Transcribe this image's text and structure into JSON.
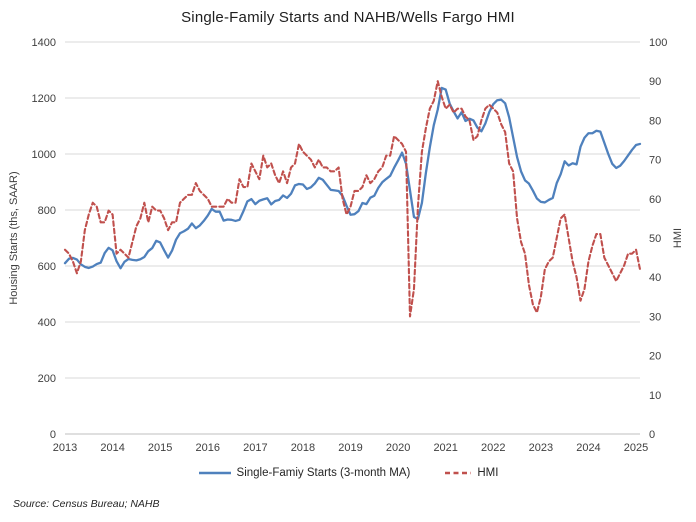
{
  "source_note": "Source: Census Bureau; NAHB",
  "chart_data": {
    "type": "line",
    "title": "Single-Family Starts and NAHB/Wells Fargo HMI",
    "ylabel_left": "Housing Starts (ths, SAAR)",
    "ylabel_right": "HMI",
    "frequency": "monthly",
    "x_start": "2013-01",
    "x_end": "2025-02",
    "grid": "horizontal-only",
    "legend_position": "bottom",
    "x_tick_labels": [
      "2013",
      "2014",
      "2015",
      "2016",
      "2017",
      "2018",
      "2019",
      "2020",
      "2021",
      "2022",
      "2023",
      "2024",
      "2025"
    ],
    "y_left_axis": {
      "min": 0,
      "max": 1400,
      "step": 200,
      "ticks": [
        "0",
        "200",
        "400",
        "600",
        "800",
        "1000",
        "1200",
        "1400"
      ]
    },
    "y_right_axis": {
      "min": 0,
      "max": 100,
      "step": 10,
      "ticks": [
        "0",
        "10",
        "20",
        "30",
        "40",
        "50",
        "60",
        "70",
        "80",
        "90",
        "100"
      ]
    },
    "series": [
      {
        "name": "Single-Famiy Starts (3-month MA)",
        "axis": "left",
        "color": "#4F81BD",
        "style": "solid",
        "values": [
          610,
          626,
          629,
          623,
          606,
          597,
          593,
          598,
          607,
          612,
          646,
          665,
          656,
          617,
          592,
          615,
          625,
          622,
          620,
          624,
          632,
          653,
          664,
          690,
          684,
          656,
          630,
          655,
          694,
          717,
          724,
          733,
          752,
          735,
          745,
          761,
          780,
          804,
          794,
          794,
          762,
          766,
          765,
          761,
          765,
          796,
          831,
          839,
          821,
          833,
          838,
          842,
          820,
          832,
          836,
          852,
          843,
          858,
          888,
          893,
          891,
          875,
          881,
          895,
          915,
          908,
          890,
          872,
          870,
          868,
          850,
          815,
          783,
          785,
          796,
          825,
          821,
          844,
          851,
          879,
          899,
          911,
          922,
          951,
          977,
          1005,
          965,
          870,
          775,
          768,
          825,
          932,
          1024,
          1103,
          1159,
          1236,
          1230,
          1180,
          1152,
          1127,
          1149,
          1118,
          1126,
          1120,
          1094,
          1081,
          1109,
          1150,
          1178,
          1192,
          1194,
          1181,
          1131,
          1060,
          989,
          938,
          906,
          894,
          869,
          841,
          829,
          827,
          836,
          843,
          896,
          928,
          974,
          959,
          967,
          963,
          1026,
          1058,
          1074,
          1074,
          1083,
          1080,
          1040,
          1000,
          965,
          950,
          958,
          975,
          995,
          1015,
          1032,
          1036
        ]
      },
      {
        "name": "HMI",
        "axis": "right",
        "color": "#C0504D",
        "style": "dashed",
        "values": [
          47,
          46,
          44,
          41,
          44,
          52,
          56,
          59,
          58,
          54,
          54,
          57,
          56,
          46,
          47,
          46,
          45,
          49,
          53,
          55,
          59,
          54,
          58,
          57,
          57,
          55,
          52,
          54,
          54,
          59,
          60,
          61,
          61,
          64,
          62,
          61,
          60,
          58,
          58,
          58,
          58,
          60,
          59,
          59,
          65,
          63,
          63,
          69,
          67,
          65,
          71,
          68,
          69,
          66,
          64,
          67,
          64,
          68,
          69,
          74,
          72,
          71,
          70,
          68,
          70,
          68,
          68,
          67,
          67,
          68,
          60,
          56,
          58,
          62,
          62,
          63,
          66,
          64,
          65,
          67,
          68,
          71,
          71,
          76,
          75,
          74,
          72,
          30,
          37,
          58,
          72,
          78,
          83,
          85,
          90,
          86,
          83,
          84,
          82,
          83,
          83,
          81,
          80,
          75,
          76,
          80,
          83,
          84,
          83,
          82,
          79,
          77,
          69,
          67,
          55,
          49,
          46,
          38,
          33,
          31,
          35,
          42,
          44,
          45,
          50,
          55,
          56,
          50,
          44,
          40,
          34,
          37,
          44,
          48,
          51,
          51,
          45,
          43,
          41,
          39,
          41,
          43,
          46,
          46,
          47,
          42
        ]
      }
    ]
  }
}
